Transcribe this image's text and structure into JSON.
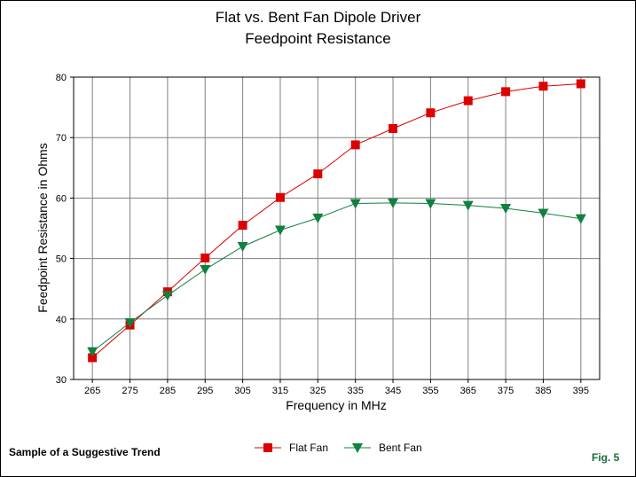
{
  "chart_data": {
    "type": "line",
    "title": "Flat vs. Bent Fan Dipole Driver",
    "subtitle": "Feedpoint Resistance",
    "xlabel": "Frequency in MHz",
    "ylabel": "Feedpoint Resistance in Ohms",
    "x": [
      265,
      275,
      285,
      295,
      305,
      315,
      325,
      335,
      345,
      355,
      365,
      375,
      385,
      395
    ],
    "xticks": [
      "265",
      "275",
      "285",
      "295",
      "305",
      "315",
      "325",
      "335",
      "345",
      "355",
      "365",
      "375",
      "385",
      "395"
    ],
    "ylim": [
      30,
      80
    ],
    "yticks": [
      "30",
      "40",
      "50",
      "60",
      "70",
      "80"
    ],
    "grid": true,
    "legend_position": "bottom-center",
    "series": [
      {
        "name": "Flat Fan",
        "color": "#dd0000",
        "marker": "square",
        "values": [
          33.6,
          39.0,
          44.5,
          50.1,
          55.5,
          60.1,
          64.0,
          68.8,
          71.5,
          74.1,
          76.1,
          77.6,
          78.5,
          78.9
        ]
      },
      {
        "name": "Bent Fan",
        "color": "#108040",
        "marker": "triangle-down",
        "values": [
          34.6,
          39.4,
          43.9,
          48.2,
          52.0,
          54.7,
          56.7,
          59.1,
          59.2,
          59.1,
          58.8,
          58.3,
          57.5,
          56.6
        ]
      }
    ]
  },
  "footnote": "Sample of a Suggestive Trend",
  "fig_label": "Fig. 5"
}
